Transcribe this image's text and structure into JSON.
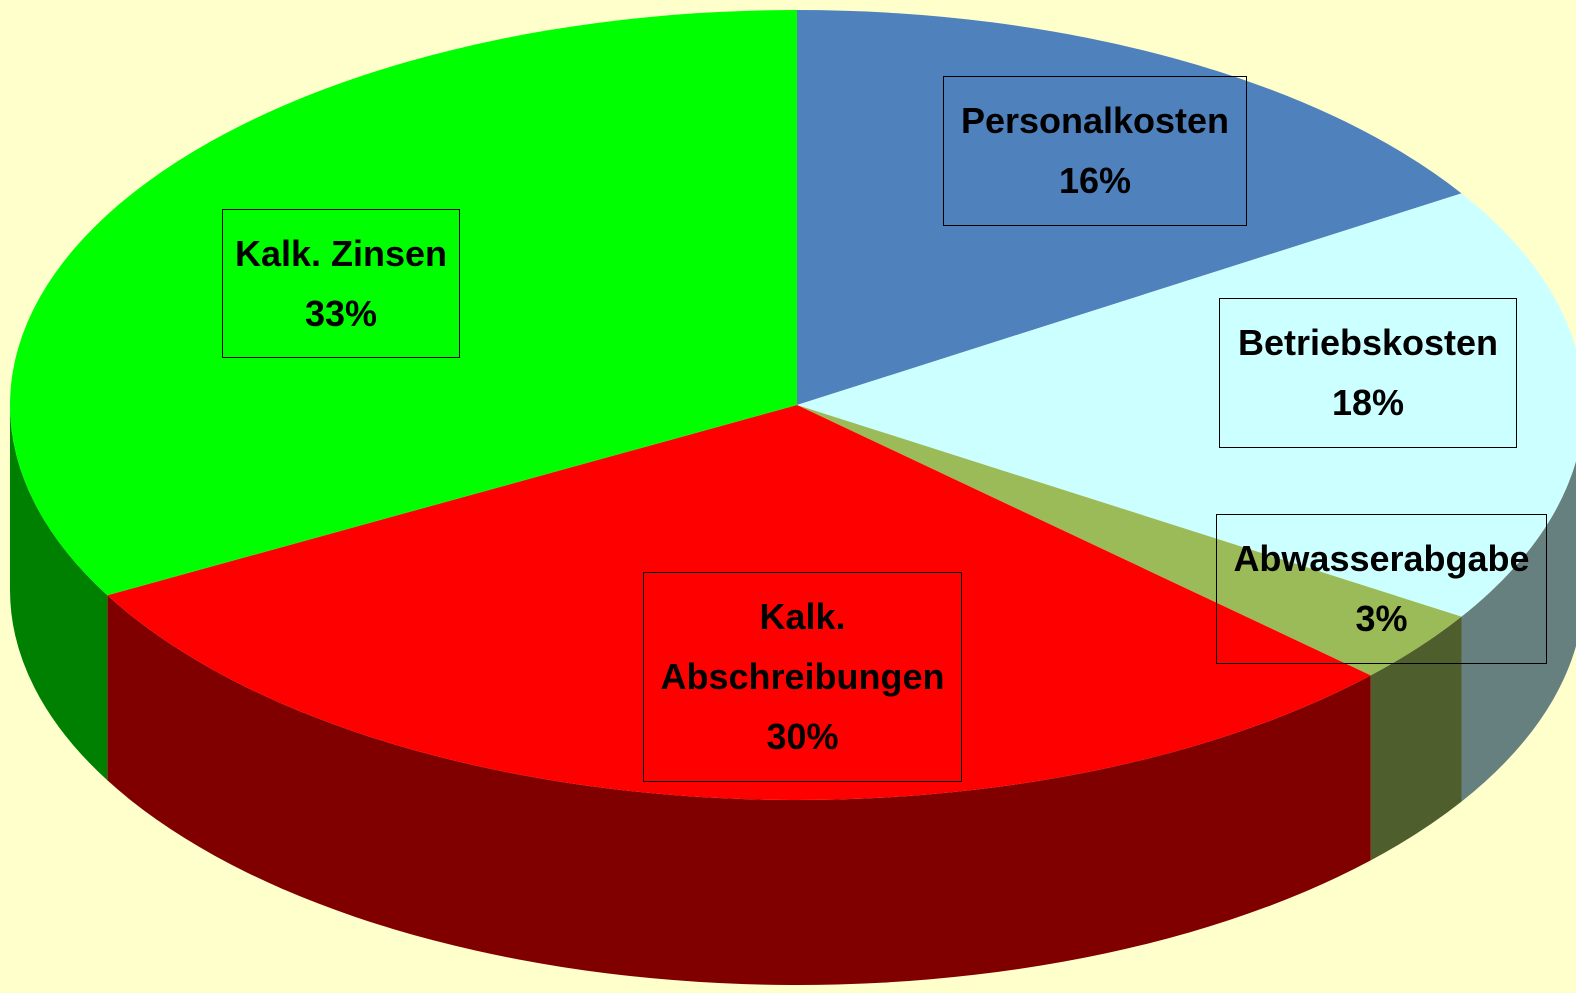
{
  "chart_data": {
    "type": "pie3d",
    "categories": [
      "Personalkosten",
      "Betriebskosten",
      "Abwasserabgabe",
      "Kalk. Abschreibungen",
      "Kalk. Zinsen"
    ],
    "values": [
      16,
      18,
      3,
      30,
      33
    ],
    "value_labels": [
      "16%",
      "18%",
      "3%",
      "30%",
      "33%"
    ],
    "colors": [
      "#4f81bd",
      "#ccffff",
      "#9bbb59",
      "#ff0000",
      "#00ff00"
    ]
  }
}
